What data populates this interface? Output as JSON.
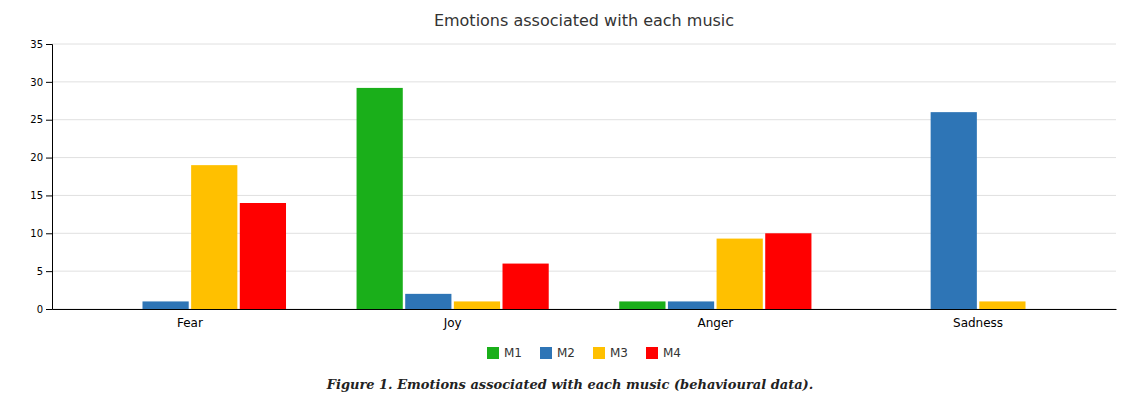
{
  "chart_data": {
    "type": "bar",
    "title": "Emotions associated with each music",
    "caption": "Figure 1. Emotions associated with each music (behavioural data).",
    "categories": [
      "Fear",
      "Joy",
      "Anger",
      "Sadness"
    ],
    "series": [
      {
        "name": "M1",
        "color": "#1AAF1A",
        "values": [
          0,
          29.2,
          1,
          0
        ]
      },
      {
        "name": "M2",
        "color": "#2E75B6",
        "values": [
          1,
          2,
          1,
          26
        ]
      },
      {
        "name": "M3",
        "color": "#FFC000",
        "values": [
          19,
          1,
          9.3,
          1
        ]
      },
      {
        "name": "M4",
        "color": "#FF0000",
        "values": [
          14,
          6,
          10,
          0
        ]
      }
    ],
    "ylim": [
      0,
      35
    ],
    "yticks": [
      0,
      5,
      10,
      15,
      20,
      25,
      30,
      35
    ],
    "grid": true,
    "legend": "bottom"
  }
}
